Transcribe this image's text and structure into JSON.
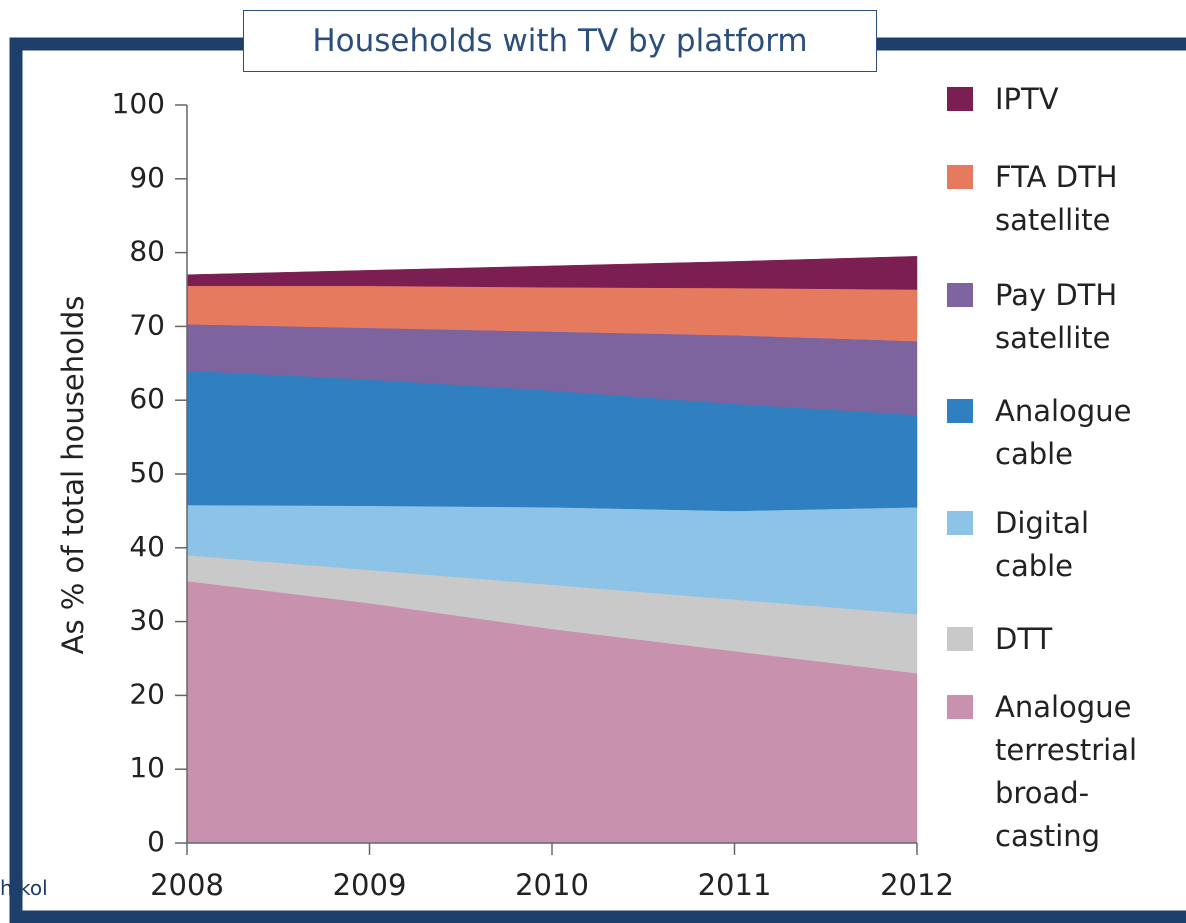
{
  "chart_data": {
    "type": "area",
    "title": "Households with TV by platform",
    "y_label": "As % of total households",
    "footer": "h kol",
    "x": [
      2008,
      2009,
      2010,
      2011,
      2012
    ],
    "xlim": [
      2008,
      2012
    ],
    "xticks": [
      2008,
      2009,
      2010,
      2011,
      2012
    ],
    "ylim": [
      0,
      100
    ],
    "yticks": [
      0,
      10,
      20,
      30,
      40,
      50,
      60,
      70,
      80,
      90,
      100
    ],
    "stacked": true,
    "series": [
      {
        "name": "Analogue\nterrestrial\nbroad-\ncasting",
        "color": "#c892ae",
        "values": [
          35.5,
          32.5,
          29,
          26,
          23
        ]
      },
      {
        "name": "DTT",
        "color": "#c9c9c9",
        "values": [
          3.5,
          4.5,
          6,
          7,
          8
        ]
      },
      {
        "name": "Digital\ncable",
        "color": "#8dc3e6",
        "values": [
          6.8,
          8.7,
          10.5,
          12,
          14.5
        ]
      },
      {
        "name": "Analogue\ncable",
        "color": "#2f7fc1",
        "values": [
          18.2,
          17.1,
          15.8,
          14.5,
          12.5
        ]
      },
      {
        "name": "Pay DTH\nsatellite",
        "color": "#7d649f",
        "values": [
          6.3,
          7,
          8,
          9.3,
          10
        ]
      },
      {
        "name": "FTA DTH\nsatellite",
        "color": "#e67a5f",
        "values": [
          5.2,
          5.7,
          6,
          6.4,
          7
        ]
      },
      {
        "name": "IPTV",
        "color": "#7b1f53",
        "values": [
          1.5,
          2.1,
          2.9,
          3.6,
          4.5
        ]
      }
    ]
  }
}
